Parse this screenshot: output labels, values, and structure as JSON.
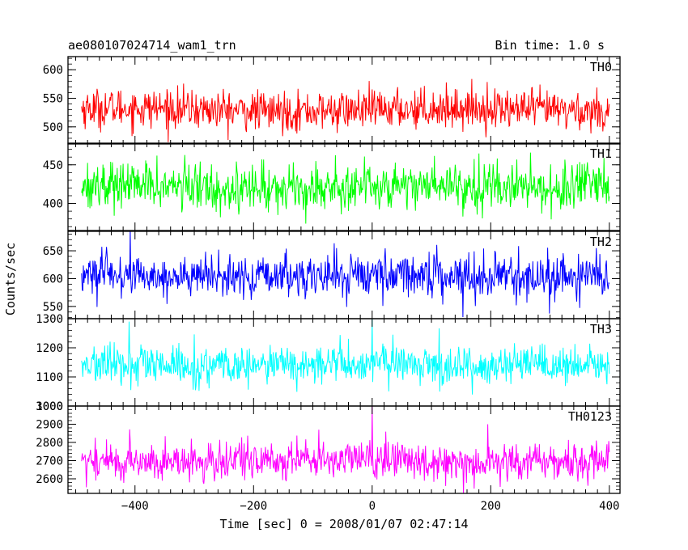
{
  "header": {
    "title": "ae080107024714_wam1_trn",
    "bin_time": "Bin time: 1.0 s"
  },
  "chart_data": {
    "type": "line",
    "title": "ae080107024714_wam1_trn",
    "subtitle": "Bin time: 1.0 s",
    "xlabel": "Time [sec] 0 = 2008/01/07 02:47:14",
    "ylabel": "Counts/sec",
    "xlim": [
      -513,
      418
    ],
    "x_ticks": [
      -400,
      -200,
      0,
      200,
      400
    ],
    "x_tick_labels": [
      "−400",
      "−200",
      "0",
      "200",
      "400"
    ],
    "x_range_data": [
      -490,
      400
    ],
    "bin_seconds": 1.0,
    "grid": false,
    "legend": "none",
    "panels": [
      {
        "name": "TH0",
        "color": "#ff0000",
        "ylim": [
          470,
          623
        ],
        "y_ticks": [
          500,
          550,
          600
        ],
        "y_tick_labels": [
          "500",
          "550",
          "600"
        ],
        "mean": 530,
        "std": 18,
        "spikes": []
      },
      {
        "name": "TH1",
        "color": "#00ff00",
        "ylim": [
          365,
          478
        ],
        "y_ticks": [
          400,
          450
        ],
        "y_tick_labels": [
          "400",
          "450"
        ],
        "mean": 422,
        "std": 16,
        "spikes": []
      },
      {
        "name": "TH2",
        "color": "#0000ff",
        "ylim": [
          528,
          685
        ],
        "y_ticks": [
          550,
          600,
          650
        ],
        "y_tick_labels": [
          "550",
          "600",
          "650"
        ],
        "mean": 605,
        "std": 20,
        "spikes": []
      },
      {
        "name": "TH3",
        "color": "#00ffff",
        "ylim": [
          1000,
          1300
        ],
        "y_ticks": [
          1000,
          1100,
          1200,
          1300
        ],
        "y_tick_labels": [
          "1000",
          "1100",
          "1200",
          "1300"
        ],
        "mean": 1140,
        "std": 35,
        "spikes": [
          {
            "x": 0,
            "value": 1300
          },
          {
            "x": -410,
            "value": 1290
          }
        ]
      },
      {
        "name": "TH0123",
        "color": "#ff00ff",
        "ylim": [
          2520,
          3000
        ],
        "y_ticks": [
          2600,
          2700,
          2800,
          2900,
          3000
        ],
        "y_tick_labels": [
          "2600",
          "2700",
          "2800",
          "2900",
          "3000"
        ],
        "mean": 2700,
        "std": 55,
        "spikes": [
          {
            "x": 0,
            "value": 3000
          },
          {
            "x": 195,
            "value": 2900
          }
        ]
      }
    ]
  }
}
